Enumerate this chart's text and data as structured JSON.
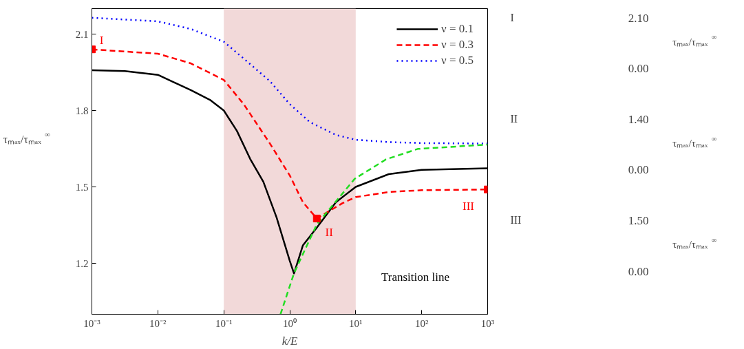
{
  "chart_data": [
    {
      "type": "line",
      "xlabel": "k/E",
      "ylabel": "τₘₐₓ/τₘₐₓ$^{∞}$",
      "log": "x",
      "xlim": [
        0.001,
        1000
      ],
      "ylim": [
        1.0,
        2.2
      ],
      "xticks": [
        {
          "value": 0.001,
          "label": "10⁻³"
        },
        {
          "value": 0.01,
          "label": "10⁻²"
        },
        {
          "value": 0.1,
          "label": "10⁻¹"
        },
        {
          "value": 1,
          "label": "10⁰"
        },
        {
          "value": 10,
          "label": "10¹"
        },
        {
          "value": 100,
          "label": "10²"
        },
        {
          "value": 1000,
          "label": "10³"
        }
      ],
      "yticks": [
        1.2,
        1.5,
        1.8,
        2.1
      ],
      "grid": false,
      "legend": "top right",
      "marker": "none",
      "bands": [
        {
          "axis": "x",
          "from": 0.1,
          "to": 10,
          "color": "#f2d9d9"
        }
      ],
      "series": [
        {
          "name": "ν = 0.1",
          "color": "#000000",
          "line_style": "solid",
          "x": [
            0.001,
            0.00316,
            0.01,
            0.0316,
            0.0631,
            0.1,
            0.158,
            0.251,
            0.398,
            0.631,
            1,
            1.16,
            1.58,
            2.57,
            5.01,
            10,
            31.6,
            100,
            1000
          ],
          "values": [
            1.958,
            1.955,
            1.94,
            1.88,
            1.84,
            1.8,
            1.72,
            1.61,
            1.52,
            1.38,
            1.21,
            1.16,
            1.27,
            1.34,
            1.44,
            1.5,
            1.55,
            1.567,
            1.573
          ]
        },
        {
          "name": "ν = 0.3",
          "color": "#ff0000",
          "line_style": "dashed",
          "x": [
            0.001,
            0.01,
            0.0316,
            0.1,
            0.2,
            0.501,
            1,
            1.58,
            2.57,
            3.16,
            6.31,
            10,
            31.6,
            100,
            1000
          ],
          "values": [
            2.04,
            2.023,
            1.985,
            1.92,
            1.825,
            1.67,
            1.545,
            1.44,
            1.376,
            1.39,
            1.436,
            1.46,
            1.48,
            1.487,
            1.49
          ]
        },
        {
          "name": "ν = 0.5",
          "color": "#0000ff",
          "line_style": "dotted",
          "x": [
            0.001,
            0.01,
            0.0316,
            0.1,
            0.2,
            0.501,
            1,
            2,
            5.01,
            10,
            31.6,
            100,
            1000
          ],
          "values": [
            2.164,
            2.15,
            2.12,
            2.07,
            2.004,
            1.915,
            1.825,
            1.755,
            1.704,
            1.685,
            1.676,
            1.672,
            1.67
          ]
        },
        {
          "color": "#22dd22",
          "line_style": "dashed",
          "x": [
            0.724,
            1.16,
            2.57,
            9.68,
            28.8,
            87.1,
            1000
          ],
          "values": [
            1.0,
            1.161,
            1.353,
            1.532,
            1.608,
            1.649,
            1.666
          ]
        },
        {
          "type": "scatter",
          "marker": "square",
          "color": "#ff0000",
          "x": [
            0.001,
            2.57,
            1000
          ],
          "values": [
            2.04,
            1.376,
            1.49
          ]
        }
      ],
      "annotations": [
        "I",
        "II",
        "III",
        "Transition line"
      ]
    },
    {
      "type": "other",
      "annotations": [
        "I",
        "2.10",
        "0.00",
        "τₘₐₓ/τₘₐₓ$^{∞}$",
        "II",
        "1.40",
        "0.00",
        "τₘₐₓ/τₘₐₓ$^{∞}$",
        "III",
        "1.50",
        "0.00",
        "τₘₐₓ/τₘₐₓ$^{∞}$"
      ]
    }
  ]
}
